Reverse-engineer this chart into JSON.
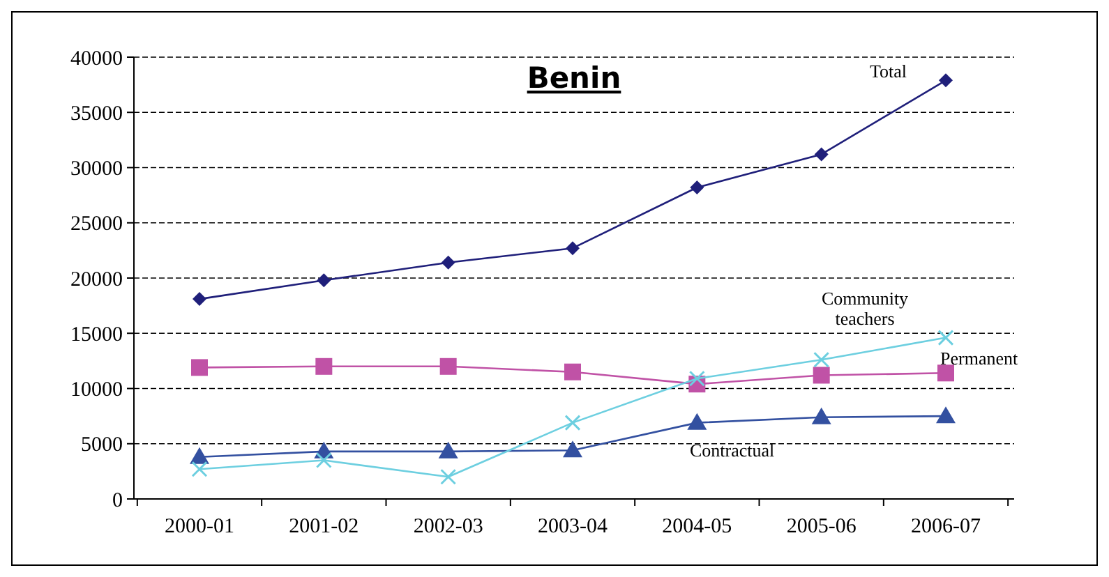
{
  "chart_data": {
    "type": "line",
    "title": "Benin",
    "categories": [
      "2000-01",
      "2001-02",
      "2002-03",
      "2003-04",
      "2004-05",
      "2005-06",
      "2006-07"
    ],
    "series": [
      {
        "name": "Total",
        "color": "#1f1f7a",
        "marker": "diamond",
        "values": [
          18100,
          19800,
          21400,
          22700,
          28200,
          31200,
          37900
        ]
      },
      {
        "name": "Permanent",
        "color": "#c052a6",
        "marker": "square",
        "values": [
          11900,
          12000,
          12000,
          11500,
          10400,
          11200,
          11400
        ]
      },
      {
        "name": "Contractual",
        "color": "#3350a0",
        "marker": "triangle",
        "values": [
          3800,
          4300,
          4300,
          4400,
          6900,
          7400,
          7500
        ]
      },
      {
        "name": "Community teachers",
        "color": "#6dcfe0",
        "marker": "cross",
        "values": [
          2700,
          3500,
          2000,
          6900,
          10900,
          12600,
          14600
        ]
      }
    ],
    "ylim": [
      0,
      40000
    ],
    "yticks": [
      0,
      5000,
      10000,
      15000,
      20000,
      25000,
      30000,
      35000,
      40000
    ],
    "grid": "y"
  }
}
